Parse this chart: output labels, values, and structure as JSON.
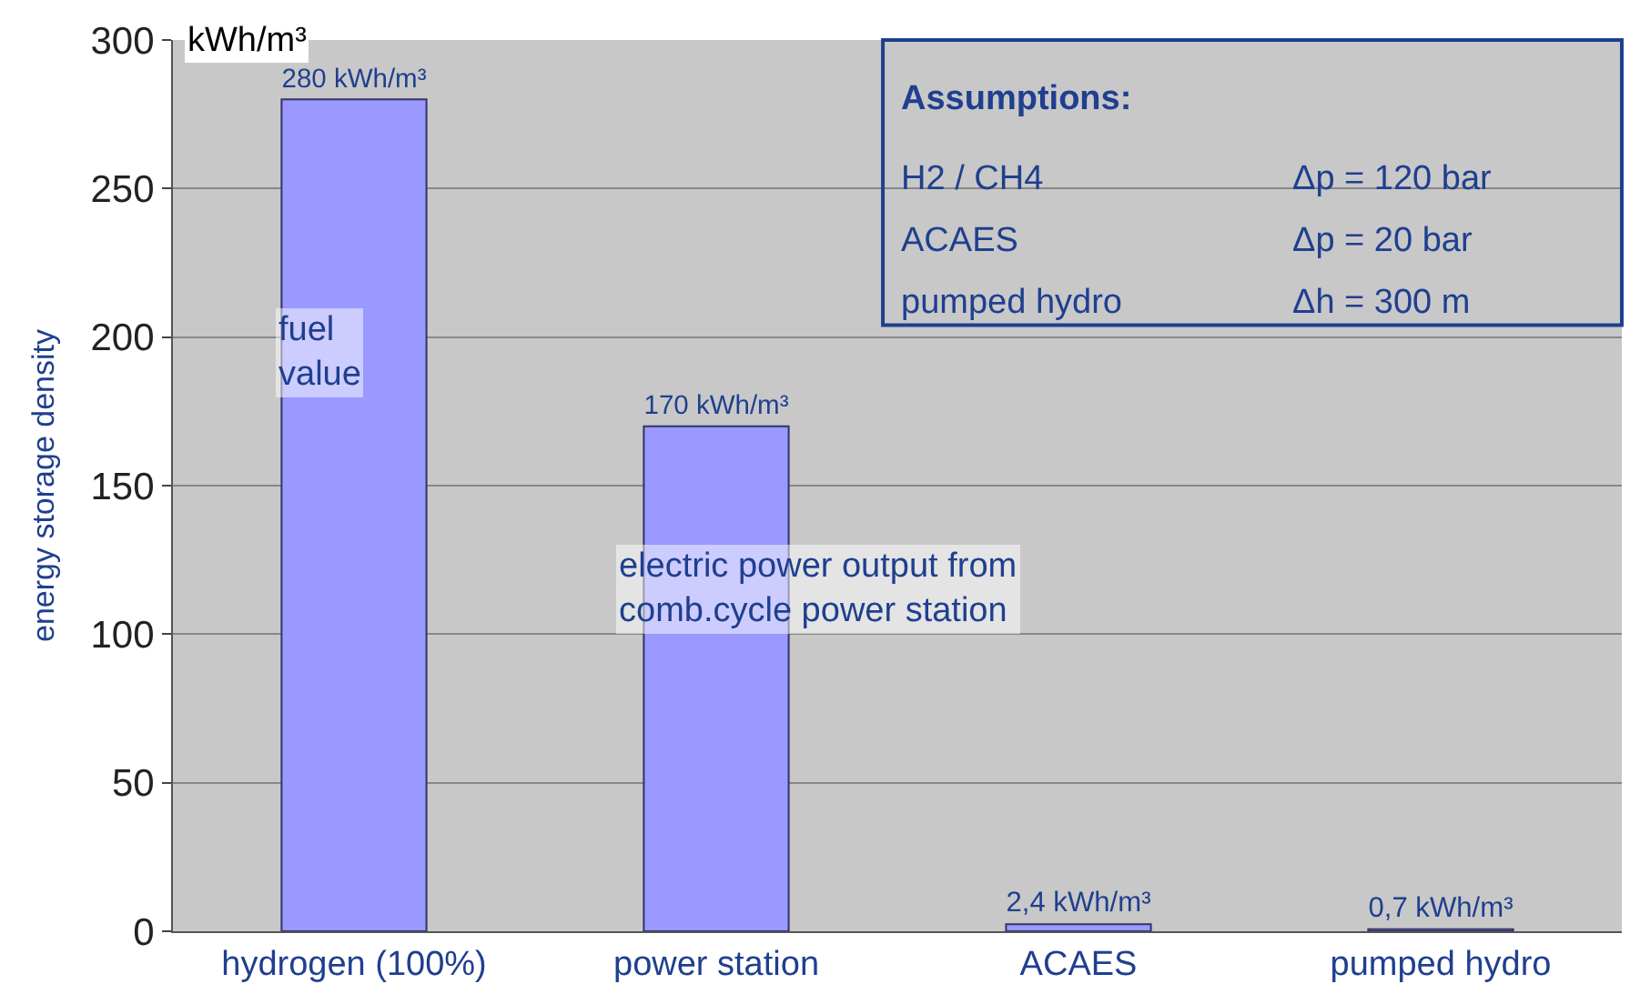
{
  "chart_data": {
    "type": "bar",
    "ylabel": "energy storage density",
    "categories": [
      "hydrogen (100%)",
      "power station",
      "ACAES",
      "pumped hydro"
    ],
    "values": [
      280,
      170,
      2.4,
      0.7
    ],
    "value_labels": [
      "280 kWh/m³",
      "170 kWh/m³",
      "2,4 kWh/m³",
      "0,7 kWh/m³"
    ],
    "color": "#9999ff",
    "ylim": [
      0,
      300
    ],
    "yticks": [
      0,
      50,
      100,
      150,
      200,
      250,
      300
    ],
    "grid": "y",
    "annotations": [
      "kWh/m³",
      "fuel value",
      "electric power output from comb.cycle power station",
      "Assumptions:",
      "H2 / CH4",
      "Δp = 120 bar",
      "ACAES",
      "Δp = 20 bar",
      "pumped hydro",
      "Δh = 300 m"
    ]
  }
}
